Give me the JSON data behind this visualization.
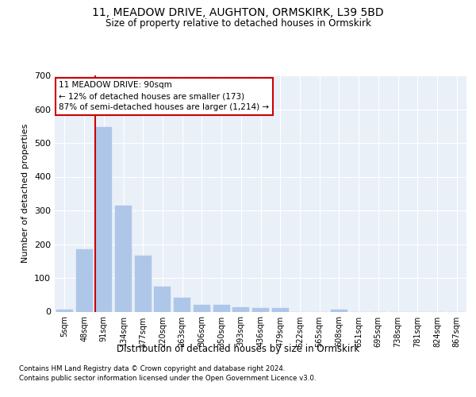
{
  "title1": "11, MEADOW DRIVE, AUGHTON, ORMSKIRK, L39 5BD",
  "title2": "Size of property relative to detached houses in Ormskirk",
  "xlabel": "Distribution of detached houses by size in Ormskirk",
  "ylabel": "Number of detached properties",
  "categories": [
    "5sqm",
    "48sqm",
    "91sqm",
    "134sqm",
    "177sqm",
    "220sqm",
    "263sqm",
    "306sqm",
    "350sqm",
    "393sqm",
    "436sqm",
    "479sqm",
    "522sqm",
    "565sqm",
    "608sqm",
    "651sqm",
    "695sqm",
    "738sqm",
    "781sqm",
    "824sqm",
    "867sqm"
  ],
  "values": [
    7,
    185,
    548,
    315,
    167,
    75,
    42,
    20,
    20,
    13,
    11,
    10,
    0,
    0,
    5,
    0,
    0,
    0,
    0,
    0,
    0
  ],
  "bar_color": "#aec6e8",
  "bar_edge_color": "#aec6e8",
  "vline_x_index": 2,
  "vline_color": "#cc0000",
  "annotation_text": "11 MEADOW DRIVE: 90sqm\n← 12% of detached houses are smaller (173)\n87% of semi-detached houses are larger (1,214) →",
  "annotation_box_color": "#ffffff",
  "annotation_box_edge": "#cc0000",
  "ylim": [
    0,
    700
  ],
  "yticks": [
    0,
    100,
    200,
    300,
    400,
    500,
    600,
    700
  ],
  "footer1": "Contains HM Land Registry data © Crown copyright and database right 2024.",
  "footer2": "Contains public sector information licensed under the Open Government Licence v3.0.",
  "plot_bg_color": "#eaf0f8"
}
